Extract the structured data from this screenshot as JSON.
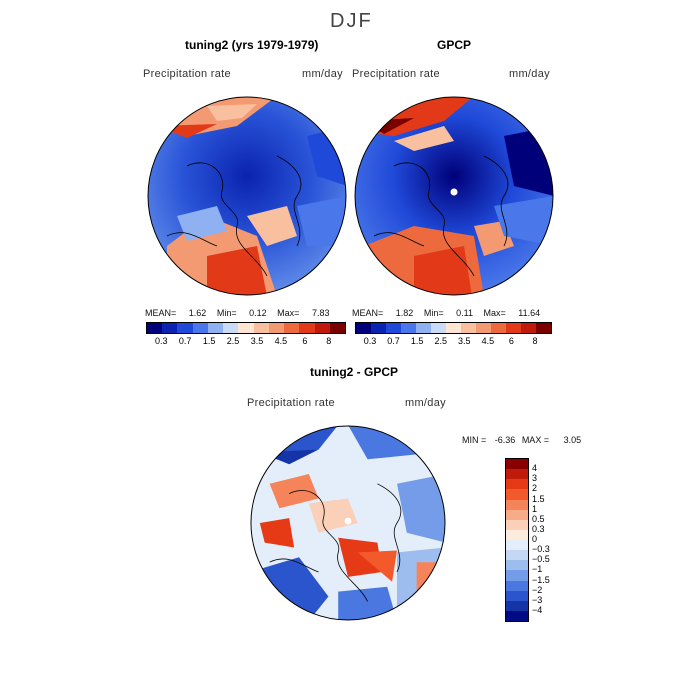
{
  "season": "DJF",
  "panels": {
    "model": {
      "title": "tuning2 (yrs 1979-1979)",
      "variable": "Precipitation rate",
      "units": "mm/day",
      "mean_label": "MEAN=",
      "mean": "1.62",
      "min_label": "Min=",
      "min": "0.12",
      "max_label": "Max=",
      "max": "7.83"
    },
    "obs": {
      "title": "GPCP",
      "variable": "Precipitation rate",
      "units": "mm/day",
      "mean_label": "MEAN=",
      "mean": "1.82",
      "min_label": "Min=",
      "min": "0.11",
      "max_label": "Max=",
      "max": "11.64"
    },
    "diff": {
      "title": "tuning2 - GPCP",
      "variable": "Precipitation rate",
      "units": "mm/day",
      "min_label": "MIN =",
      "min": "-6.36",
      "max_label": "MAX =",
      "max": "3.05"
    }
  },
  "abs_colorbar": {
    "ticks": [
      "0.3",
      "0.7",
      "1.5",
      "2.5",
      "3.5",
      "4.5",
      "6",
      "8"
    ],
    "colors": [
      "#00007a",
      "#0a23b0",
      "#1f49d8",
      "#4a78ea",
      "#8fb1f2",
      "#c9dbf6",
      "#fde6d4",
      "#f9c0a0",
      "#f39a72",
      "#ec6a3e",
      "#e23a18",
      "#bf1a0c",
      "#7a0000"
    ]
  },
  "diff_colorbar": {
    "ticks": [
      "4",
      "3",
      "2",
      "1.5",
      "1",
      "0.5",
      "0.3",
      "0",
      "−0.3",
      "−0.5",
      "−1",
      "−1.5",
      "−2",
      "−3",
      "−4"
    ],
    "colors": [
      "#8a0000",
      "#c01a0a",
      "#e63a16",
      "#f25a2c",
      "#f5845a",
      "#f8ab88",
      "#fbd0b8",
      "#fdebdc",
      "#e4eefa",
      "#c4d8f4",
      "#9ebdef",
      "#749ce8",
      "#4a78e0",
      "#2a55cc",
      "#1534a8",
      "#000a84"
    ]
  }
}
